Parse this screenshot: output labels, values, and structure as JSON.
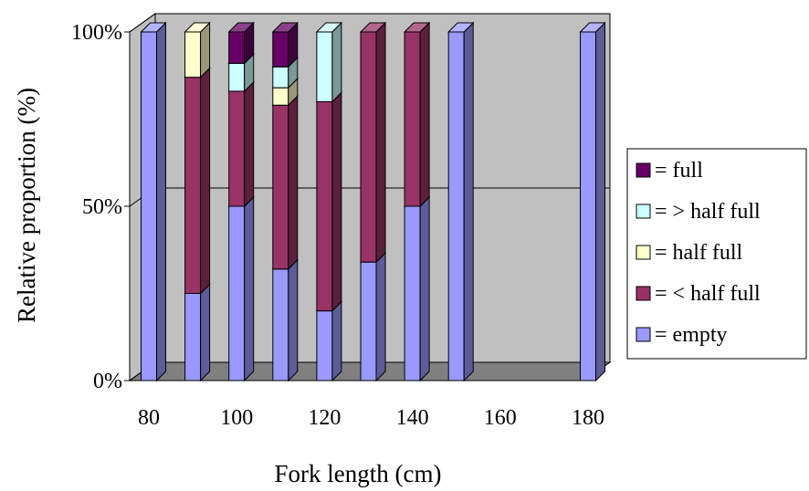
{
  "chart_data": {
    "type": "bar",
    "stacked": true,
    "percent_stacked": true,
    "three_d": true,
    "title": "",
    "xlabel": "Fork length (cm)",
    "ylabel": "Relative proportion (%)",
    "x_tick_labels": [
      "80",
      "100",
      "120",
      "140",
      "160",
      "180"
    ],
    "y_tick_labels": [
      "0%",
      "50%",
      "100%"
    ],
    "ylim": [
      0,
      100
    ],
    "categories": [
      80,
      90,
      100,
      110,
      120,
      130,
      140,
      150,
      180
    ],
    "series": [
      {
        "name": "= empty",
        "color": "#9999ff",
        "values": [
          100,
          25,
          50,
          32,
          20,
          34,
          50,
          100,
          100
        ]
      },
      {
        "name": "= < half full",
        "color": "#993366",
        "values": [
          0,
          62,
          33,
          47,
          60,
          66,
          50,
          0,
          0
        ]
      },
      {
        "name": "= half full",
        "color": "#ffffcc",
        "values": [
          0,
          13,
          0,
          5,
          0,
          0,
          0,
          0,
          0
        ]
      },
      {
        "name": "= > half full",
        "color": "#ccffff",
        "values": [
          0,
          0,
          8,
          6,
          20,
          0,
          0,
          0,
          0
        ]
      },
      {
        "name": "= full",
        "color": "#660066",
        "values": [
          0,
          0,
          9,
          10,
          0,
          0,
          0,
          0,
          0
        ]
      }
    ],
    "legend": {
      "position": "right",
      "order": [
        "= full",
        "= > half full",
        "= half full",
        "= < half full",
        "= empty"
      ]
    },
    "grid": {
      "horizontal": true,
      "vertical": false
    },
    "colors": {
      "back_wall": "#c0c0c0",
      "floor": "#808080"
    }
  }
}
